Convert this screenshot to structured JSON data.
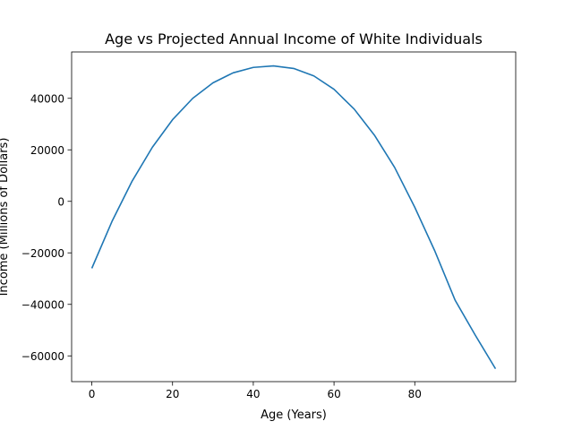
{
  "chart_data": {
    "type": "line",
    "title": "Age vs Projected Annual Income of White Individuals",
    "xlabel": "Age (Years)",
    "ylabel": "Income (Millions of Dollars)",
    "xlim": [
      -5,
      105
    ],
    "ylim": [
      -70000,
      58000
    ],
    "xticks": [
      0,
      20,
      40,
      60,
      80
    ],
    "xtick_labels": [
      "0",
      "20",
      "40",
      "60",
      "80"
    ],
    "yticks": [
      -60000,
      -40000,
      -20000,
      0,
      20000,
      40000
    ],
    "ytick_labels": [
      "−60000",
      "−40000",
      "−20000",
      "0",
      "20000",
      "40000"
    ],
    "grid": false,
    "legend": "none",
    "series": [
      {
        "color": "#1f77b4",
        "x": [
          0,
          5,
          10,
          15,
          20,
          25,
          30,
          35,
          40,
          45,
          50,
          55,
          60,
          65,
          70,
          75,
          80,
          85,
          90,
          95,
          100
        ],
        "y": [
          -26000,
          -7800,
          7900,
          21000,
          31700,
          40000,
          46000,
          49900,
          52000,
          52600,
          51600,
          48700,
          43500,
          35800,
          25700,
          13200,
          -2300,
          -19400,
          -38400,
          -52000,
          -65000
        ]
      }
    ]
  }
}
